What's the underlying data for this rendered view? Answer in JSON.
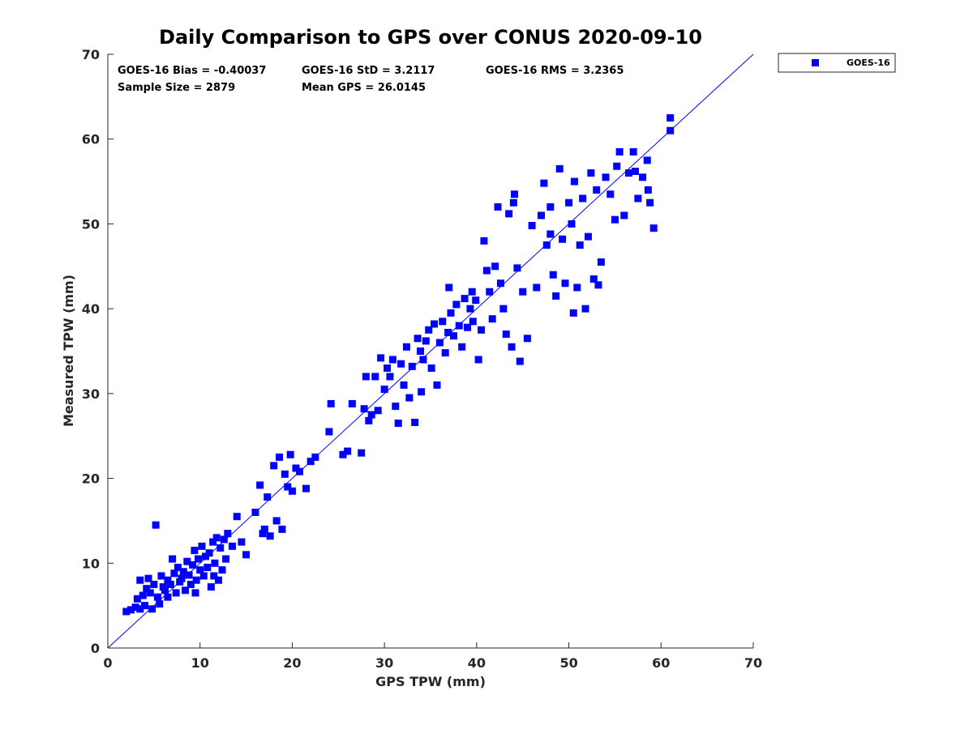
{
  "colors": {
    "marker": "#0000ff",
    "line": "#0000ff",
    "axis": "#262626"
  },
  "chart_data": {
    "type": "scatter",
    "title": "Daily Comparison to GPS over CONUS 2020-09-10",
    "xlabel": "GPS TPW (mm)",
    "ylabel": "Measured TPW (mm)",
    "xlim": [
      0,
      70
    ],
    "ylim": [
      0,
      70
    ],
    "xticks": [
      "0",
      "10",
      "20",
      "30",
      "40",
      "50",
      "60",
      "70"
    ],
    "yticks": [
      "0",
      "10",
      "20",
      "30",
      "40",
      "50",
      "60",
      "70"
    ],
    "grid": false,
    "legend": {
      "position": "outside-top-right",
      "entries": [
        "GOES-16"
      ]
    },
    "stats": {
      "bias": "GOES-16 Bias = -0.40037",
      "std": "GOES-16 StD = 3.2117",
      "rms": "GOES-16 RMS = 3.2365",
      "sample_size": "Sample Size = 2879",
      "mean_gps": "Mean GPS = 26.0145"
    },
    "reference_line": {
      "name": "1:1 line",
      "x": [
        0,
        70
      ],
      "y": [
        0,
        70
      ]
    },
    "series": [
      {
        "name": "GOES-16",
        "marker": "square",
        "points": [
          [
            2.0,
            4.3
          ],
          [
            2.5,
            4.5
          ],
          [
            3.0,
            4.8
          ],
          [
            3.2,
            5.8
          ],
          [
            3.5,
            8.0
          ],
          [
            3.8,
            6.2
          ],
          [
            4.0,
            5.0
          ],
          [
            4.2,
            7.0
          ],
          [
            4.4,
            8.2
          ],
          [
            4.6,
            6.5
          ],
          [
            4.8,
            4.6
          ],
          [
            5.0,
            7.5
          ],
          [
            5.2,
            14.5
          ],
          [
            5.4,
            6.0
          ],
          [
            5.6,
            5.2
          ],
          [
            5.8,
            8.5
          ],
          [
            6.0,
            7.2
          ],
          [
            6.2,
            6.8
          ],
          [
            6.5,
            8.0
          ],
          [
            6.8,
            7.5
          ],
          [
            7.0,
            10.5
          ],
          [
            7.2,
            8.8
          ],
          [
            7.4,
            6.5
          ],
          [
            7.6,
            9.5
          ],
          [
            7.8,
            7.8
          ],
          [
            8.0,
            8.2
          ],
          [
            8.2,
            9.0
          ],
          [
            8.4,
            6.8
          ],
          [
            8.6,
            10.2
          ],
          [
            8.8,
            8.6
          ],
          [
            9.0,
            7.5
          ],
          [
            9.2,
            9.8
          ],
          [
            9.4,
            11.5
          ],
          [
            9.6,
            8.0
          ],
          [
            9.8,
            10.5
          ],
          [
            10.0,
            9.2
          ],
          [
            10.2,
            12.0
          ],
          [
            10.4,
            8.5
          ],
          [
            10.6,
            10.8
          ],
          [
            10.8,
            9.5
          ],
          [
            11.0,
            11.2
          ],
          [
            11.2,
            7.2
          ],
          [
            11.4,
            12.5
          ],
          [
            11.6,
            10.0
          ],
          [
            11.8,
            13.0
          ],
          [
            12.0,
            8.0
          ],
          [
            12.2,
            11.8
          ],
          [
            12.4,
            9.2
          ],
          [
            12.6,
            12.8
          ],
          [
            12.8,
            10.5
          ],
          [
            13.0,
            13.5
          ],
          [
            13.5,
            12.0
          ],
          [
            14.0,
            15.5
          ],
          [
            14.5,
            12.5
          ],
          [
            15.0,
            11.0
          ],
          [
            16.0,
            16.0
          ],
          [
            16.5,
            19.2
          ],
          [
            17.0,
            14.0
          ],
          [
            17.3,
            17.8
          ],
          [
            17.6,
            13.2
          ],
          [
            18.0,
            21.5
          ],
          [
            18.3,
            15.0
          ],
          [
            18.6,
            22.5
          ],
          [
            18.9,
            14.0
          ],
          [
            19.2,
            20.5
          ],
          [
            19.5,
            19.0
          ],
          [
            19.8,
            22.8
          ],
          [
            20.0,
            18.5
          ],
          [
            20.4,
            21.2
          ],
          [
            20.8,
            20.8
          ],
          [
            21.5,
            18.8
          ],
          [
            22.0,
            22.0
          ],
          [
            24.0,
            25.5
          ],
          [
            24.2,
            28.8
          ],
          [
            25.5,
            22.8
          ],
          [
            26.0,
            23.2
          ],
          [
            27.5,
            23.0
          ],
          [
            27.8,
            28.2
          ],
          [
            28.0,
            32.0
          ],
          [
            28.3,
            26.8
          ],
          [
            28.6,
            27.5
          ],
          [
            29.0,
            32.0
          ],
          [
            29.3,
            28.0
          ],
          [
            29.6,
            34.2
          ],
          [
            30.0,
            30.5
          ],
          [
            30.3,
            33.0
          ],
          [
            30.6,
            32.0
          ],
          [
            30.9,
            34.0
          ],
          [
            31.2,
            28.5
          ],
          [
            31.5,
            26.5
          ],
          [
            31.8,
            33.5
          ],
          [
            32.1,
            31.0
          ],
          [
            32.4,
            35.5
          ],
          [
            32.7,
            29.5
          ],
          [
            33.0,
            33.2
          ],
          [
            33.3,
            26.6
          ],
          [
            33.6,
            36.5
          ],
          [
            33.9,
            35.0
          ],
          [
            34.2,
            34.0
          ],
          [
            34.5,
            36.2
          ],
          [
            34.8,
            37.5
          ],
          [
            35.1,
            33.0
          ],
          [
            35.4,
            38.2
          ],
          [
            35.7,
            31.0
          ],
          [
            36.0,
            36.0
          ],
          [
            36.3,
            38.5
          ],
          [
            36.6,
            34.8
          ],
          [
            36.9,
            37.2
          ],
          [
            37.2,
            39.5
          ],
          [
            37.5,
            36.8
          ],
          [
            37.8,
            40.5
          ],
          [
            38.1,
            38.0
          ],
          [
            38.4,
            35.5
          ],
          [
            38.7,
            41.2
          ],
          [
            39.0,
            37.8
          ],
          [
            39.3,
            40.0
          ],
          [
            39.6,
            38.5
          ],
          [
            39.9,
            41.0
          ],
          [
            40.2,
            34.0
          ],
          [
            40.5,
            37.5
          ],
          [
            40.8,
            48.0
          ],
          [
            41.1,
            44.5
          ],
          [
            41.4,
            42.0
          ],
          [
            41.7,
            38.8
          ],
          [
            42.0,
            45.0
          ],
          [
            42.3,
            52.0
          ],
          [
            42.6,
            43.0
          ],
          [
            42.9,
            40.0
          ],
          [
            43.2,
            37.0
          ],
          [
            43.5,
            51.2
          ],
          [
            43.8,
            35.5
          ],
          [
            44.1,
            53.5
          ],
          [
            44.4,
            44.8
          ],
          [
            44.7,
            33.8
          ],
          [
            45.0,
            42.0
          ],
          [
            45.5,
            36.5
          ],
          [
            46.5,
            42.5
          ],
          [
            47.0,
            51.0
          ],
          [
            47.3,
            54.8
          ],
          [
            47.6,
            47.5
          ],
          [
            48.0,
            52.0
          ],
          [
            48.3,
            44.0
          ],
          [
            48.6,
            41.5
          ],
          [
            49.0,
            56.5
          ],
          [
            49.3,
            48.2
          ],
          [
            49.6,
            43.0
          ],
          [
            50.0,
            52.5
          ],
          [
            50.3,
            50.0
          ],
          [
            50.6,
            55.0
          ],
          [
            50.9,
            42.5
          ],
          [
            51.2,
            47.5
          ],
          [
            51.5,
            53.0
          ],
          [
            51.8,
            40.0
          ],
          [
            52.1,
            48.5
          ],
          [
            52.4,
            56.0
          ],
          [
            52.7,
            43.5
          ],
          [
            53.0,
            54.0
          ],
          [
            53.5,
            45.5
          ],
          [
            54.0,
            55.5
          ],
          [
            54.5,
            53.5
          ],
          [
            55.0,
            50.5
          ],
          [
            55.5,
            58.5
          ],
          [
            56.0,
            51.0
          ],
          [
            56.5,
            56.0
          ],
          [
            57.0,
            58.5
          ],
          [
            57.5,
            53.0
          ],
          [
            58.0,
            55.5
          ],
          [
            58.5,
            57.5
          ],
          [
            58.8,
            52.5
          ],
          [
            59.2,
            49.5
          ],
          [
            61.0,
            62.5
          ],
          [
            61.0,
            61.0
          ],
          [
            3.5,
            4.6
          ],
          [
            6.5,
            6.0
          ],
          [
            9.5,
            6.5
          ],
          [
            11.5,
            8.5
          ],
          [
            16.8,
            13.5
          ],
          [
            22.5,
            22.5
          ],
          [
            26.5,
            28.8
          ],
          [
            34.0,
            30.2
          ],
          [
            37.0,
            42.5
          ],
          [
            39.5,
            42.0
          ],
          [
            44.0,
            52.5
          ],
          [
            46.0,
            49.8
          ],
          [
            48.0,
            48.8
          ],
          [
            50.5,
            39.5
          ],
          [
            53.2,
            42.8
          ],
          [
            55.2,
            56.8
          ],
          [
            57.2,
            56.2
          ],
          [
            58.6,
            54.0
          ]
        ]
      }
    ]
  }
}
